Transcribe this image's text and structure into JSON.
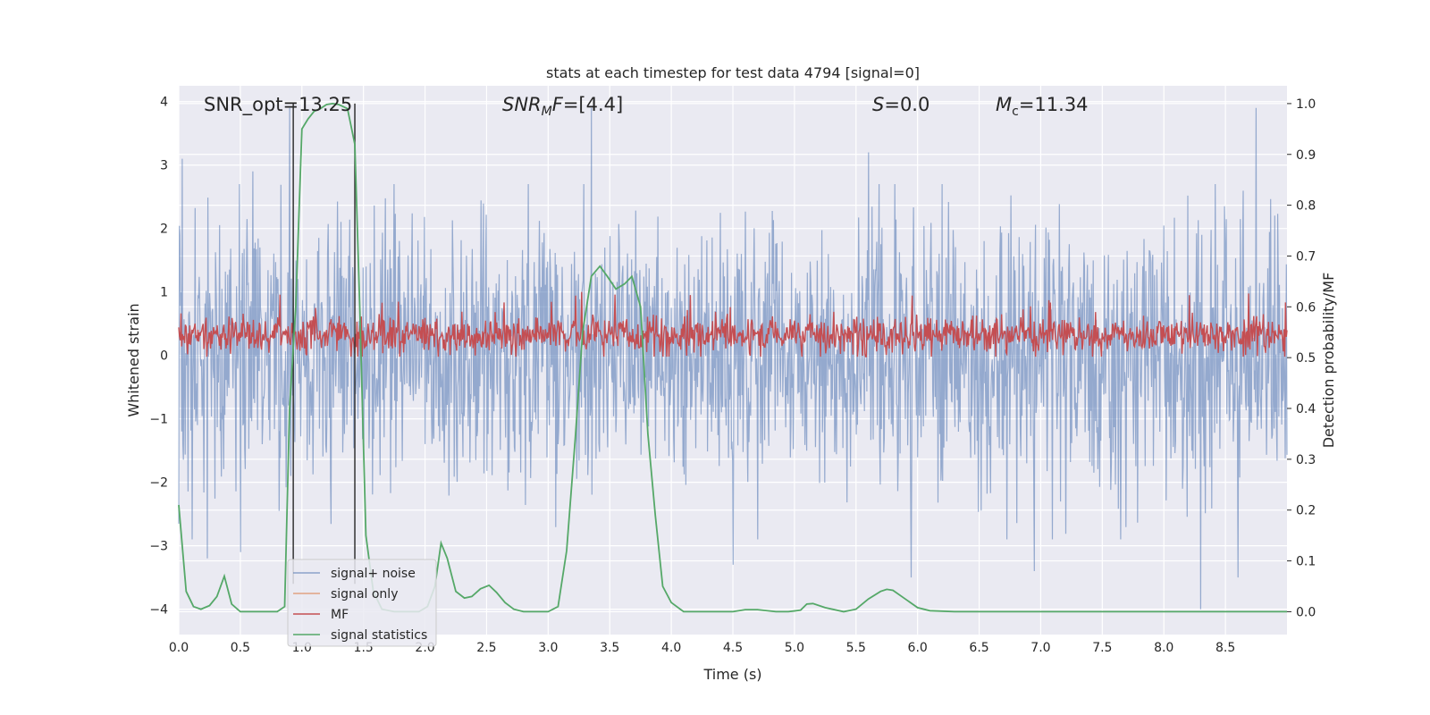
{
  "chart_data": {
    "type": "line",
    "title": "stats at each timestep for test data 4794 [signal=0]",
    "xlabel": "Time (s)",
    "ylabel_left": "Whitened strain",
    "ylabel_right": "Detection probability/MF",
    "xlim": [
      0.0,
      9.0
    ],
    "ylim_left": [
      -4.4,
      4.25
    ],
    "ylim_right": [
      -0.045,
      1.035
    ],
    "x_ticks": [
      "0.0",
      "0.5",
      "1.0",
      "1.5",
      "2.0",
      "2.5",
      "3.0",
      "3.5",
      "4.0",
      "4.5",
      "5.0",
      "5.5",
      "6.0",
      "6.5",
      "7.0",
      "7.5",
      "8.0",
      "8.5"
    ],
    "y_ticks_left": [
      "4",
      "3",
      "2",
      "1",
      "0",
      "−1",
      "−2",
      "−3",
      "−4"
    ],
    "y_ticks_right": [
      "1.0",
      "0.9",
      "0.8",
      "0.7",
      "0.6",
      "0.5",
      "0.4",
      "0.3",
      "0.2",
      "0.1",
      "0.0"
    ],
    "grid": true,
    "annotations": {
      "snr_opt": "SNR_opt=13.25",
      "snr_mf": "=[4.4]",
      "snr_mf_sym": "SNR",
      "snr_mf_sub": "M",
      "snr_mf_f": "F",
      "s_sym": "S",
      "s_val": "=0.0",
      "mc_sym": "M",
      "mc_sub": "c",
      "mc_val": "=11.34"
    },
    "vertical_markers": [
      0.93,
      1.43
    ],
    "series": [
      {
        "name": "signal+ noise",
        "color": "#4c72b0",
        "axis": "left",
        "description": "whitened strain noise, dense oscillation between about -2.5 and 2.5 with spikes near -4 and 3.9",
        "spikes": [
          {
            "t": 0.03,
            "v": 3.1
          },
          {
            "t": 0.23,
            "v": -3.2
          },
          {
            "t": 0.5,
            "v": -3.1
          },
          {
            "t": 0.6,
            "v": 2.9
          },
          {
            "t": 0.9,
            "v": 3.9
          },
          {
            "t": 3.35,
            "v": 3.9
          },
          {
            "t": 4.5,
            "v": -3.3
          },
          {
            "t": 5.6,
            "v": 3.2
          },
          {
            "t": 5.95,
            "v": -3.5
          },
          {
            "t": 6.95,
            "v": -3.4
          },
          {
            "t": 8.3,
            "v": -4.0
          },
          {
            "t": 8.6,
            "v": -3.5
          },
          {
            "t": 8.75,
            "v": 3.9
          }
        ]
      },
      {
        "name": "signal only",
        "color": "#dd8452",
        "axis": "left",
        "values": []
      },
      {
        "name": "MF",
        "color": "#c44e52",
        "axis": "left",
        "description": "matched filter output oscillating between about 0 and 0.7, peaks near 1.0"
      },
      {
        "name": "signal statistics",
        "color": "#55a868",
        "axis": "right",
        "x": [
          0.0,
          0.06,
          0.12,
          0.18,
          0.25,
          0.31,
          0.37,
          0.43,
          0.5,
          0.56,
          0.62,
          0.68,
          0.74,
          0.8,
          0.86,
          0.9,
          0.95,
          1.0,
          1.05,
          1.1,
          1.15,
          1.2,
          1.25,
          1.3,
          1.37,
          1.43,
          1.47,
          1.52,
          1.58,
          1.65,
          1.75,
          1.85,
          1.95,
          2.02,
          2.08,
          2.13,
          2.18,
          2.25,
          2.32,
          2.38,
          2.45,
          2.52,
          2.58,
          2.65,
          2.72,
          2.8,
          2.9,
          3.0,
          3.08,
          3.15,
          3.22,
          3.28,
          3.35,
          3.42,
          3.48,
          3.55,
          3.62,
          3.68,
          3.75,
          3.81,
          3.87,
          3.93,
          4.0,
          4.1,
          4.3,
          4.5,
          4.6,
          4.7,
          4.85,
          4.95,
          5.05,
          5.1,
          5.15,
          5.25,
          5.4,
          5.5,
          5.6,
          5.7,
          5.75,
          5.8,
          5.9,
          6.0,
          6.1,
          6.3,
          6.6,
          7.0,
          7.5,
          8.0,
          8.5,
          9.0
        ],
        "y": [
          0.21,
          0.04,
          0.01,
          0.005,
          0.012,
          0.03,
          0.07,
          0.015,
          0.0,
          0.0,
          0.0,
          0.0,
          0.0,
          0.0,
          0.01,
          0.4,
          0.6,
          0.95,
          0.97,
          0.985,
          0.99,
          0.998,
          1.0,
          0.998,
          0.99,
          0.92,
          0.6,
          0.15,
          0.04,
          0.005,
          0.0,
          0.0,
          0.0,
          0.01,
          0.05,
          0.135,
          0.105,
          0.04,
          0.027,
          0.03,
          0.045,
          0.052,
          0.038,
          0.018,
          0.005,
          0.0,
          0.0,
          0.0,
          0.01,
          0.12,
          0.34,
          0.55,
          0.66,
          0.68,
          0.66,
          0.635,
          0.645,
          0.66,
          0.6,
          0.35,
          0.19,
          0.05,
          0.018,
          0.0,
          0.0,
          0.0,
          0.004,
          0.004,
          0.0,
          0.0,
          0.003,
          0.015,
          0.016,
          0.008,
          0.0,
          0.005,
          0.025,
          0.04,
          0.044,
          0.042,
          0.025,
          0.008,
          0.002,
          0.0,
          0.0,
          0.0,
          0.0,
          0.0,
          0.0,
          0.0
        ]
      }
    ],
    "legend": {
      "placement": "lower-left",
      "entries": [
        "signal+ noise",
        "signal only",
        "MF",
        "signal statistics"
      ]
    }
  }
}
